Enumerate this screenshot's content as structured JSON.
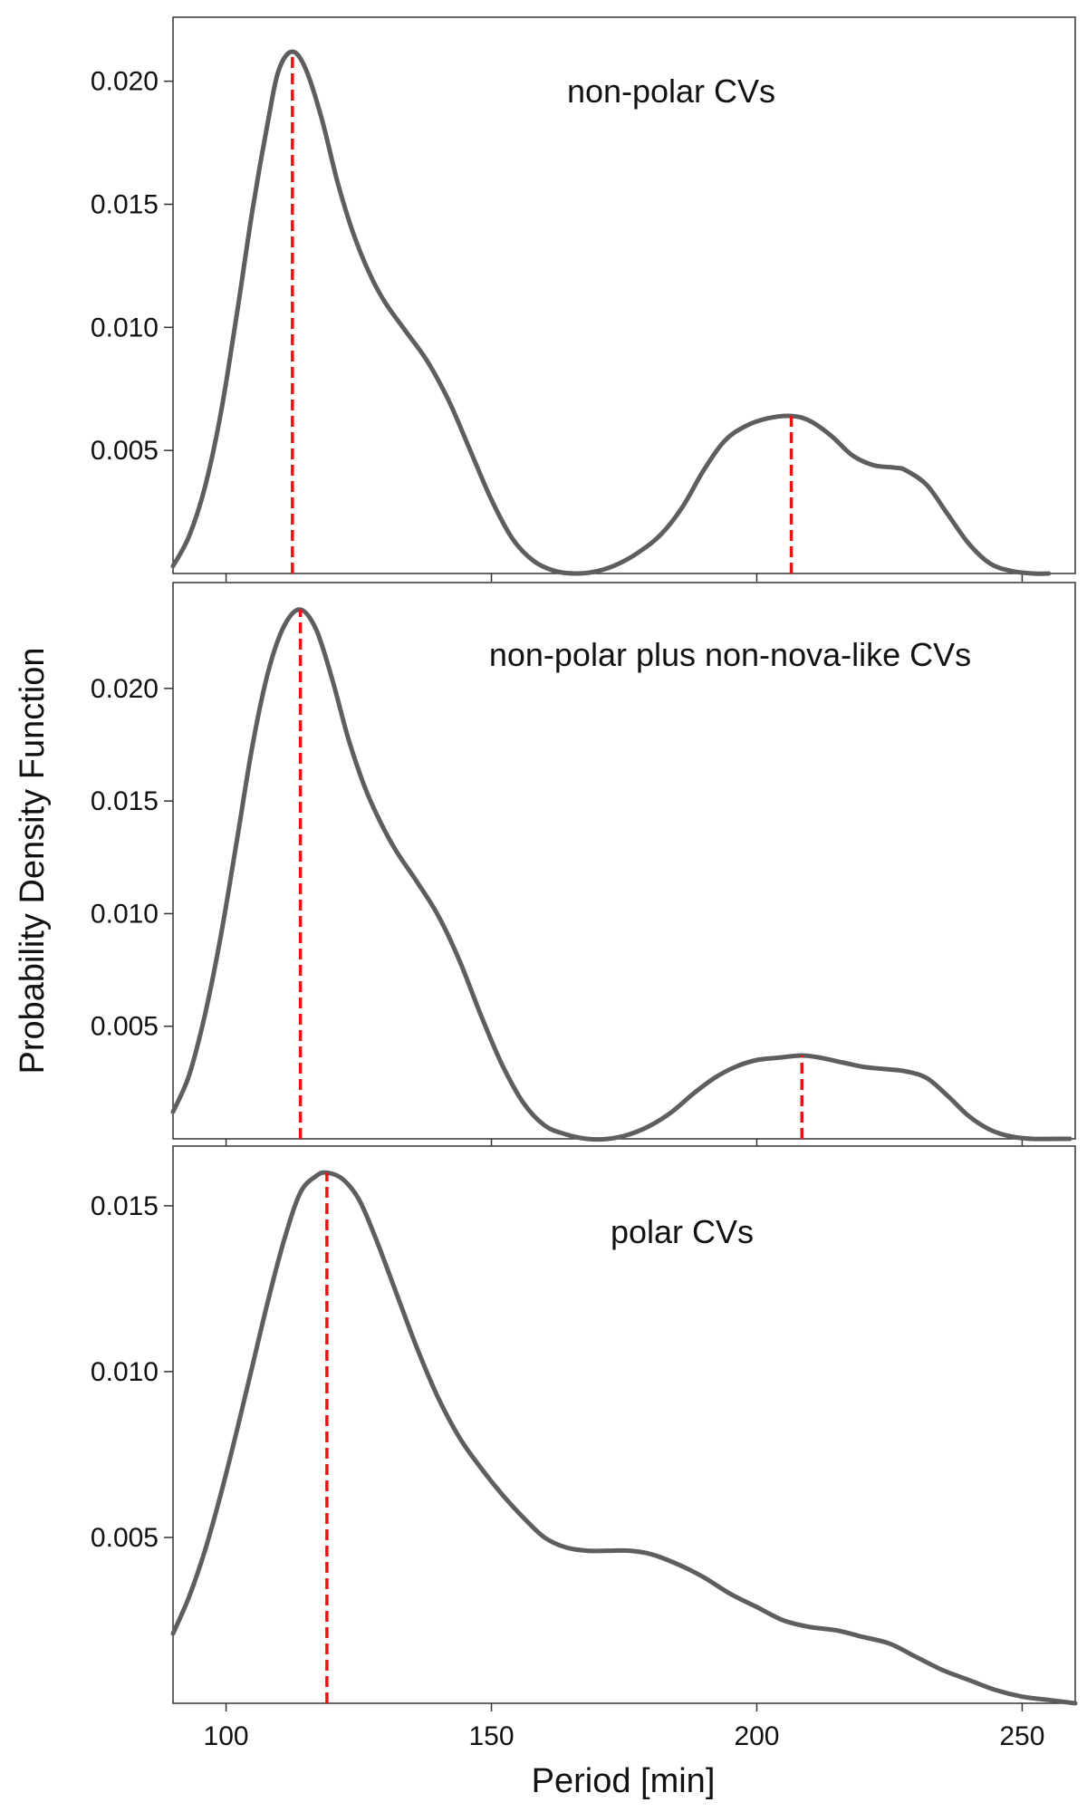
{
  "chart_data": {
    "type": "line",
    "xlabel": "Period [min]",
    "ylabel": "Probability Density Function",
    "xlim": [
      90,
      260
    ],
    "xticks": [
      100,
      150,
      200,
      250
    ],
    "colors": {
      "curve": "#5e5e5e",
      "marker": "#ee1111",
      "frame": "#333333"
    },
    "panels": [
      {
        "title": "non-polar CVs",
        "ylim": [
          0,
          0.0226
        ],
        "yticks": [
          "0.005",
          "0.010",
          "0.015",
          "0.020"
        ],
        "series": [
          {
            "name": "PDF",
            "x": [
              90,
              93,
              96,
              99,
              102,
              105,
              108,
              110,
              112.5,
              115,
              118,
              121,
              124,
              127,
              130,
              134,
              138,
              142,
              146,
              150,
              154,
              158,
              162,
              166,
              170,
              174,
              178,
              182,
              186,
              190,
              194,
              198,
              202,
              206.5,
              210,
              214,
              218,
              222,
              226,
              228,
              232,
              236,
              240,
              244,
              248,
              252,
              255
            ],
            "y": [
              0.0003,
              0.0015,
              0.0035,
              0.0065,
              0.0105,
              0.0148,
              0.0185,
              0.0205,
              0.0212,
              0.0205,
              0.0185,
              0.0159,
              0.0138,
              0.0122,
              0.011,
              0.0098,
              0.0086,
              0.007,
              0.005,
              0.003,
              0.0014,
              0.0005,
              0.0001,
              0.0,
              0.0001,
              0.0004,
              0.0009,
              0.0016,
              0.0027,
              0.0042,
              0.0054,
              0.006,
              0.0063,
              0.0064,
              0.0062,
              0.0056,
              0.0048,
              0.0044,
              0.0043,
              0.0042,
              0.0036,
              0.0024,
              0.0012,
              0.0004,
              0.0001,
              0.0,
              0.0
            ]
          }
        ],
        "peaks": [
          112.5,
          206.5
        ]
      },
      {
        "title": "non-polar plus non-nova-like CVs",
        "ylim": [
          0,
          0.0247
        ],
        "yticks": [
          "0.005",
          "0.010",
          "0.015",
          "0.020"
        ],
        "series": [
          {
            "name": "PDF",
            "x": [
              90,
              93,
              96,
              99,
              102,
              105,
              108,
              111,
              114,
              117,
              120,
              123,
              126,
              129,
              132,
              136,
              140,
              144,
              148,
              152,
              156,
              160,
              164,
              168,
              172,
              176,
              180,
              184,
              188,
              192,
              196,
              200,
              204,
              208.5,
              212,
              216,
              220,
              224,
              228,
              232,
              236,
              240,
              244,
              248,
              252,
              256,
              259
            ],
            "y": [
              0.0012,
              0.0028,
              0.0055,
              0.009,
              0.0132,
              0.0175,
              0.0208,
              0.0228,
              0.0235,
              0.0226,
              0.0204,
              0.0178,
              0.0157,
              0.0141,
              0.0128,
              0.0114,
              0.0099,
              0.0079,
              0.0055,
              0.0033,
              0.0016,
              0.0006,
              0.0002,
              0.0,
              0.0,
              0.0002,
              0.0006,
              0.0012,
              0.002,
              0.0027,
              0.0032,
              0.0035,
              0.0036,
              0.0037,
              0.0036,
              0.0034,
              0.0032,
              0.0031,
              0.003,
              0.0027,
              0.0019,
              0.001,
              0.0004,
              0.0001,
              0.0,
              0.0,
              0.0
            ]
          }
        ],
        "peaks": [
          114,
          208.5
        ]
      },
      {
        "title": "polar CVs",
        "ylim": [
          0,
          0.0168
        ],
        "yticks": [
          "0.005",
          "0.010",
          "0.015"
        ],
        "series": [
          {
            "name": "PDF",
            "x": [
              90,
              93,
              96,
              99,
              102,
              105,
              108,
              111,
              114,
              117,
              119,
              122,
              125,
              128,
              132,
              136,
              140,
              144,
              148,
              152,
              156,
              160,
              164,
              168,
              172,
              176,
              180,
              185,
              190,
              195,
              200,
              205,
              210,
              215,
              220,
              225,
              230,
              235,
              240,
              245,
              250,
              255,
              260
            ],
            "y": [
              0.0021,
              0.0032,
              0.0046,
              0.0063,
              0.0082,
              0.0102,
              0.0122,
              0.014,
              0.0154,
              0.0159,
              0.016,
              0.0158,
              0.0152,
              0.0141,
              0.0124,
              0.0107,
              0.0092,
              0.008,
              0.0071,
              0.0063,
              0.0056,
              0.005,
              0.0047,
              0.0046,
              0.0046,
              0.0046,
              0.0045,
              0.0042,
              0.0038,
              0.0033,
              0.0029,
              0.0025,
              0.0023,
              0.0022,
              0.002,
              0.0018,
              0.0014,
              0.001,
              0.0007,
              0.0004,
              0.0002,
              0.0001,
              0.0
            ]
          }
        ],
        "peaks": [
          119
        ]
      }
    ]
  }
}
